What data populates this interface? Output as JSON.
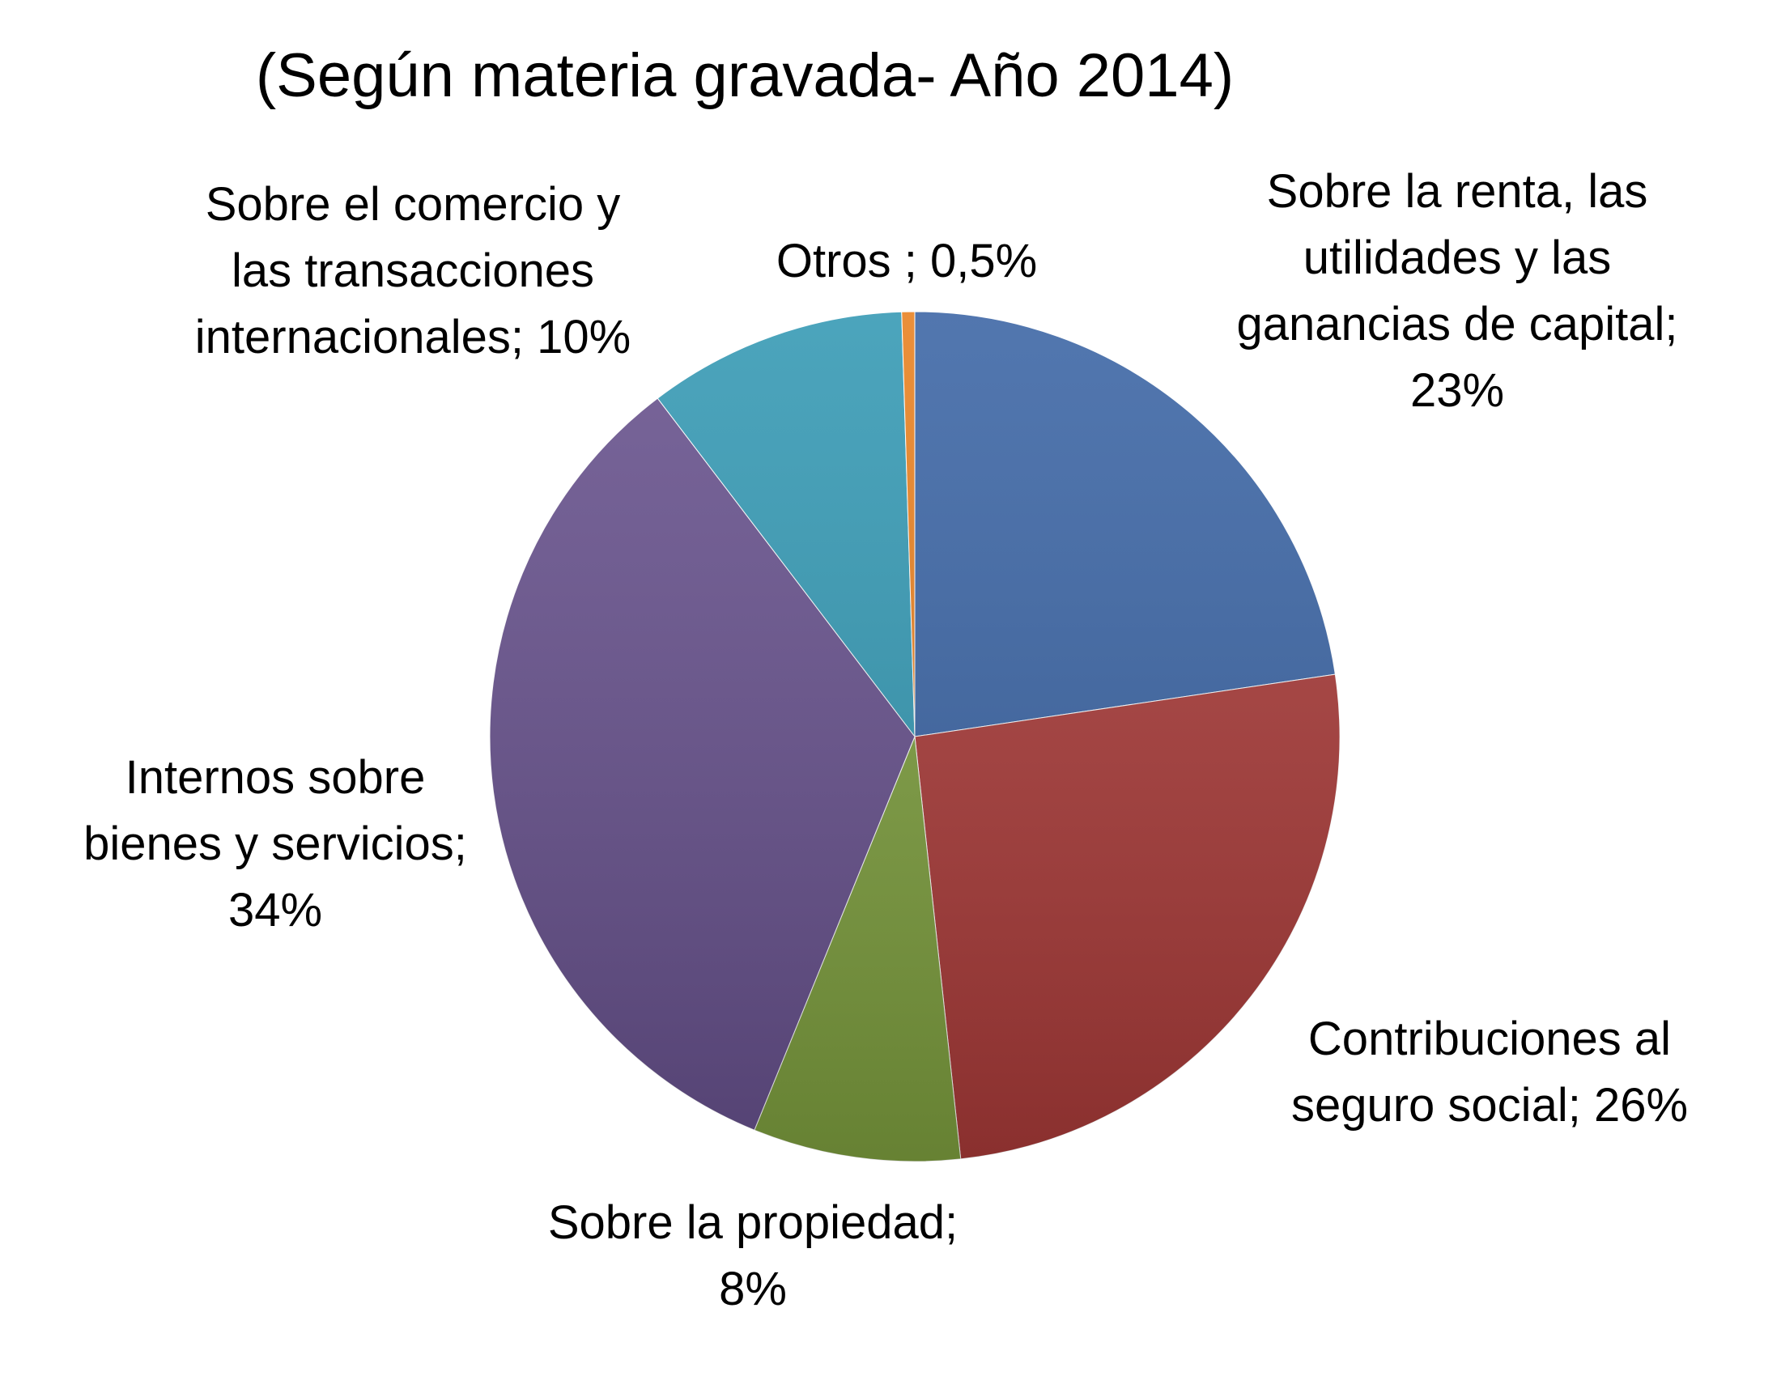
{
  "chart_data": {
    "type": "pie",
    "title": "(Según materia gravada- Año 2014)",
    "start_angle_deg": 0,
    "direction": "clockwise",
    "slices": [
      {
        "name": "Sobre la renta, las utilidades y las ganancias de capital",
        "label_lines": [
          "Sobre la renta, las",
          "utilidades y las",
          "ganancias de capital;",
          "23%"
        ],
        "value": 23,
        "color": "#3a64a4"
      },
      {
        "name": "Contribuciones al seguro social",
        "label_lines": [
          "Contribuciones al",
          "seguro social; 26%"
        ],
        "value": 26,
        "color": "#a83a38"
      },
      {
        "name": "Sobre la propiedad",
        "label_lines": [
          "Sobre la propiedad;",
          "8%"
        ],
        "value": 8,
        "color": "#7d9e3e"
      },
      {
        "name": "Internos sobre bienes y servicios",
        "label_lines": [
          "Internos sobre",
          "bienes y servicios;",
          "34%"
        ],
        "value": 34,
        "color": "#66508c"
      },
      {
        "name": "Sobre el comercio y las transacciones internacionales",
        "label_lines": [
          "Sobre el comercio y",
          "las transacciones",
          "internacionales; 10%"
        ],
        "value": 10,
        "color": "#3398b3"
      },
      {
        "name": "Otros",
        "label_lines": [
          "Otros ; 0,5%"
        ],
        "value": 0.5,
        "color": "#e8801f"
      }
    ]
  }
}
